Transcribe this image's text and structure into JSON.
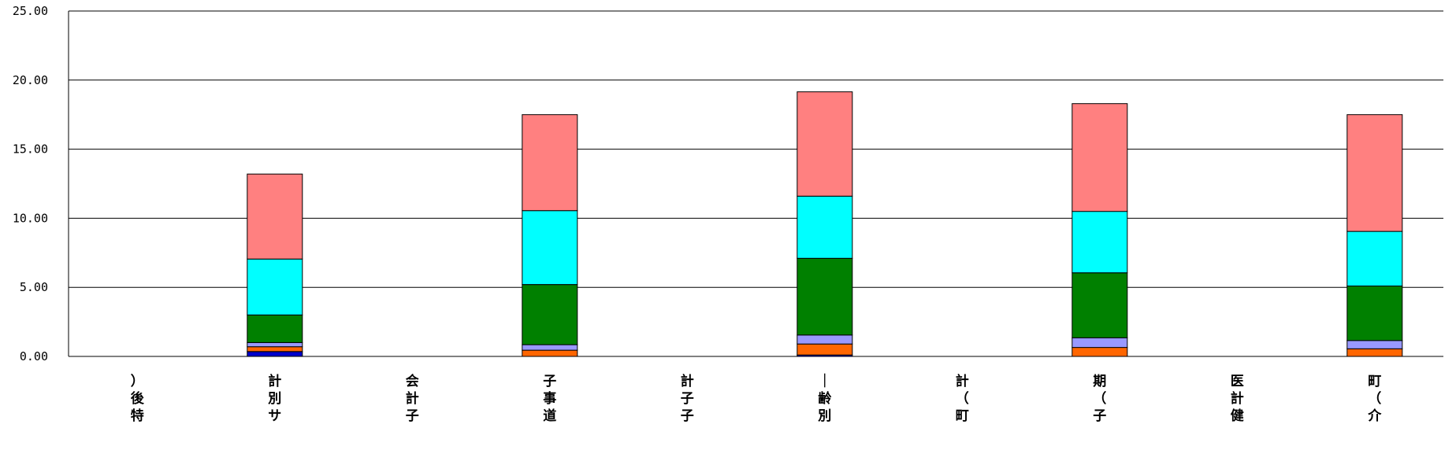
{
  "chart_data": {
    "type": "bar",
    "stacked": true,
    "categories": [
      "）後特",
      "計別サ",
      "会計子",
      "子事道",
      "計子子",
      "｜齢別",
      "計（町",
      "期（子",
      "医計健",
      "町（介"
    ],
    "y_tick_labels": [
      "0.00",
      "5.00",
      "10.00",
      "15.00",
      "20.00",
      "25.00"
    ],
    "ylim": [
      0,
      25
    ],
    "grid": true,
    "series": [
      {
        "color": "#0000cc",
        "values": [
          0,
          0.35,
          0,
          0,
          0,
          0.1,
          0,
          0,
          0,
          0
        ]
      },
      {
        "color": "#ff6600",
        "values": [
          0,
          0.35,
          0,
          0.45,
          0,
          0.8,
          0,
          0.65,
          0,
          0.55
        ]
      },
      {
        "color": "#9999ff",
        "values": [
          0,
          0.3,
          0,
          0.4,
          0,
          0.65,
          0,
          0.7,
          0,
          0.6
        ]
      },
      {
        "color": "#008000",
        "values": [
          0,
          2.0,
          0,
          4.35,
          0,
          5.55,
          0,
          4.7,
          0,
          3.95
        ]
      },
      {
        "color": "#00ffff",
        "values": [
          0,
          4.05,
          0,
          5.35,
          0,
          4.5,
          0,
          4.45,
          0,
          3.95
        ]
      },
      {
        "color": "#ff8080",
        "values": [
          0,
          6.15,
          0,
          6.95,
          0,
          7.55,
          0,
          7.8,
          0,
          8.45
        ]
      }
    ]
  }
}
